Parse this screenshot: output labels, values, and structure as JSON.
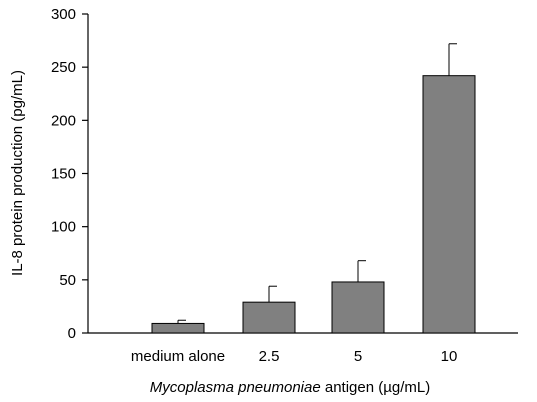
{
  "chart_data": {
    "type": "bar",
    "title": "",
    "categories": [
      "medium alone",
      "2.5",
      "5",
      "10"
    ],
    "values": [
      9,
      29,
      48,
      242
    ],
    "error_upper": [
      3,
      15,
      20,
      30
    ],
    "ylabel": "IL-8 protein production (pg/mL)",
    "xlabel_italic": "Mycoplasma pneumoniae",
    "xlabel_rest": " antigen (µg/mL)",
    "ylim": [
      0,
      300
    ],
    "yticks": [
      0,
      50,
      100,
      150,
      200,
      250,
      300
    ],
    "bar_color": "#808080",
    "grid": false,
    "legend": "none"
  }
}
